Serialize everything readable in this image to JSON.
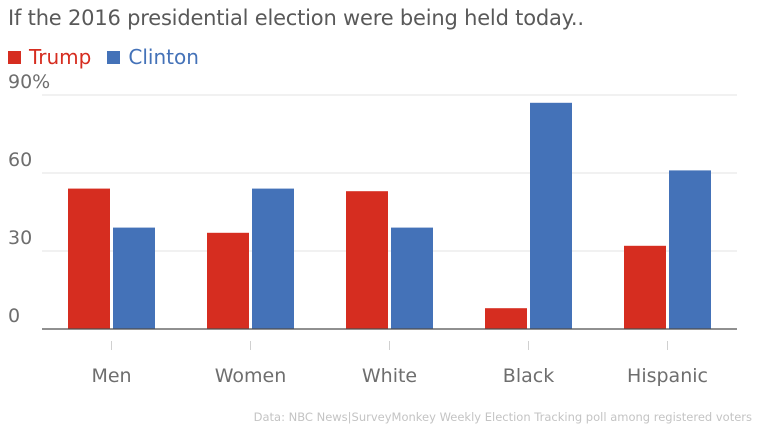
{
  "chart_data": {
    "type": "bar",
    "title": "If the 2016 presidential election were being held today..",
    "categories": [
      "Men",
      "Women",
      "White",
      "Black",
      "Hispanic"
    ],
    "series": [
      {
        "name": "Trump",
        "color": "#d62d20",
        "values": [
          54,
          37,
          53,
          8,
          32
        ]
      },
      {
        "name": "Clinton",
        "color": "#4472b8",
        "values": [
          39,
          54,
          39,
          87,
          61
        ]
      }
    ],
    "yticks": [
      {
        "value": 0,
        "label": "0"
      },
      {
        "value": 30,
        "label": "30"
      },
      {
        "value": 60,
        "label": "60"
      },
      {
        "value": 90,
        "label": "90%"
      }
    ],
    "ylim": [
      0,
      90
    ],
    "grid": true,
    "legend_position": "top-left",
    "source": "Data: NBC News|SurveyMonkey Weekly Election Tracking poll among registered voters"
  }
}
